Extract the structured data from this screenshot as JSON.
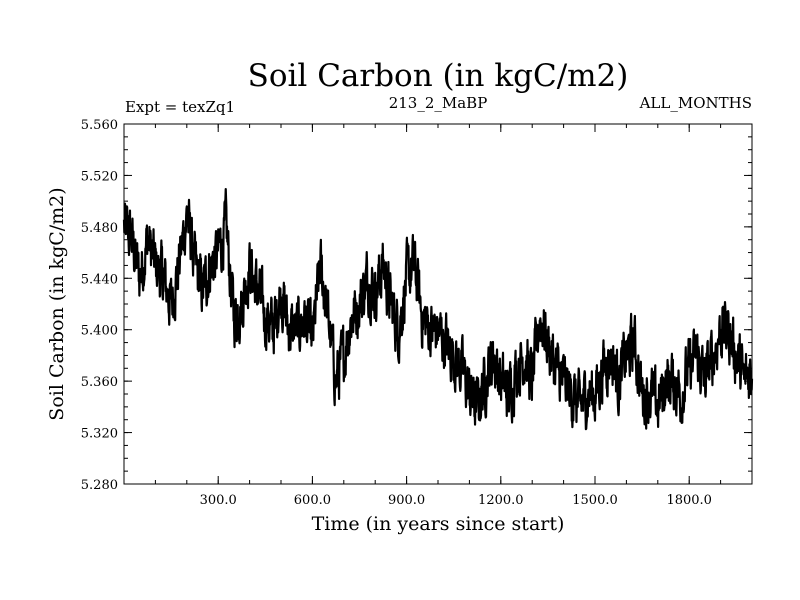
{
  "chart_data": {
    "type": "line",
    "title": "Soil Carbon (in kgC/m2)",
    "subtitle_left": "Expt = texZq1",
    "subtitle_center": "213_2_MaBP",
    "subtitle_right": "ALL_MONTHS",
    "xlabel": "Time (in years since start)",
    "ylabel": "Soil Carbon (in kgC/m2)",
    "xlim": [
      0,
      2000
    ],
    "ylim": [
      5.28,
      5.56
    ],
    "xticks": [
      300,
      600,
      900,
      1200,
      1500,
      1800
    ],
    "xtick_labels": [
      "300.0",
      "600.0",
      "900.0",
      "1200.0",
      "1500.0",
      "1800.0"
    ],
    "yticks": [
      5.28,
      5.32,
      5.36,
      5.4,
      5.44,
      5.48,
      5.52,
      5.56
    ],
    "ytick_labels": [
      "5.280",
      "5.320",
      "5.360",
      "5.400",
      "5.440",
      "5.480",
      "5.520",
      "5.560"
    ],
    "series": [
      {
        "name": "Soil Carbon",
        "color": "#000000",
        "x": [
          0,
          25,
          50,
          75,
          100,
          125,
          150,
          175,
          200,
          225,
          250,
          275,
          300,
          325,
          350,
          375,
          400,
          425,
          450,
          475,
          500,
          525,
          550,
          575,
          600,
          625,
          650,
          675,
          700,
          725,
          750,
          775,
          800,
          825,
          850,
          875,
          900,
          925,
          950,
          975,
          1000,
          1025,
          1050,
          1075,
          1100,
          1125,
          1150,
          1175,
          1200,
          1225,
          1250,
          1275,
          1300,
          1325,
          1350,
          1375,
          1400,
          1425,
          1450,
          1475,
          1500,
          1525,
          1550,
          1575,
          1600,
          1625,
          1650,
          1675,
          1700,
          1725,
          1750,
          1775,
          1800,
          1825,
          1850,
          1875,
          1900,
          1925,
          1950,
          1975,
          2000
        ],
        "y": [
          5.48,
          5.47,
          5.44,
          5.47,
          5.45,
          5.44,
          5.42,
          5.45,
          5.49,
          5.45,
          5.43,
          5.45,
          5.46,
          5.48,
          5.41,
          5.42,
          5.45,
          5.43,
          5.41,
          5.4,
          5.43,
          5.4,
          5.4,
          5.41,
          5.39,
          5.45,
          5.41,
          5.36,
          5.38,
          5.41,
          5.42,
          5.44,
          5.43,
          5.45,
          5.42,
          5.4,
          5.44,
          5.45,
          5.41,
          5.4,
          5.4,
          5.39,
          5.38,
          5.37,
          5.35,
          5.34,
          5.36,
          5.38,
          5.36,
          5.35,
          5.37,
          5.38,
          5.36,
          5.41,
          5.39,
          5.37,
          5.36,
          5.35,
          5.34,
          5.35,
          5.35,
          5.37,
          5.38,
          5.36,
          5.38,
          5.39,
          5.35,
          5.35,
          5.34,
          5.36,
          5.36,
          5.35,
          5.37,
          5.38,
          5.36,
          5.38,
          5.4,
          5.4,
          5.38,
          5.36,
          5.37
        ],
        "noise_amplitude": 0.018
      }
    ]
  }
}
